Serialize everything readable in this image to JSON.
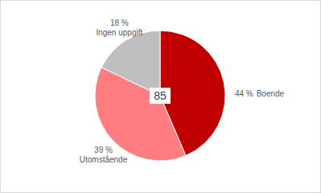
{
  "chart_data": {
    "type": "pie",
    "categories": [
      "Boende",
      "Utomstående",
      "Ingen uppgift"
    ],
    "values": [
      44,
      39,
      18
    ],
    "value_labels": [
      "44 %",
      "39 %",
      "18 %"
    ],
    "colors": [
      "#c00000",
      "#ff7c80",
      "#bfbfbf"
    ],
    "data_labels": true,
    "annotation": "85"
  }
}
